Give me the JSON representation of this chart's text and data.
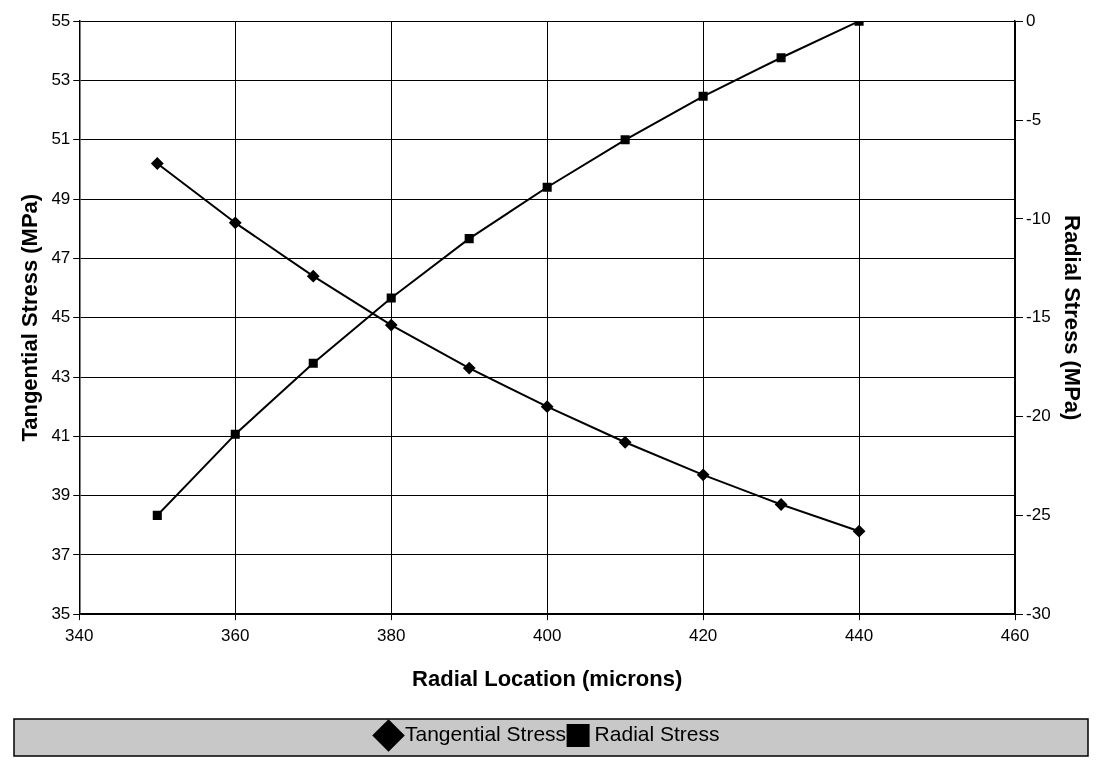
{
  "chart_data": {
    "type": "line",
    "xlabel": "Radial Location (microns)",
    "ylabel": "Tangential Stress (MPa)",
    "y2label": "Radial Stress (MPa)",
    "x": [
      350,
      360,
      370,
      380,
      390,
      400,
      410,
      420,
      430,
      440
    ],
    "xlim": [
      340,
      460
    ],
    "xticks": [
      340,
      360,
      380,
      400,
      420,
      440,
      460
    ],
    "ylim": [
      35,
      55
    ],
    "yticks": [
      35,
      37,
      39,
      41,
      43,
      45,
      47,
      49,
      51,
      53,
      55
    ],
    "y2lim": [
      -30,
      0
    ],
    "y2ticks": [
      -30,
      -25,
      -20,
      -15,
      -10,
      -5,
      0
    ],
    "grid": true,
    "legend": "bottom",
    "line_style": "solid",
    "series": [
      {
        "name": "Tangential Stress",
        "color": "#000000",
        "marker": "diamond",
        "values": [
          50.2,
          48.2,
          46.4,
          44.75,
          43.3,
          42.0,
          40.8,
          39.7,
          38.7,
          37.8
        ]
      },
      {
        "name": "Radial Stress",
        "color": "#000000",
        "marker": "square",
        "axis": "y2",
        "values": [
          -25.0,
          -20.9,
          -17.3,
          -14.0,
          -11.0,
          -8.4,
          -6.0,
          -3.8,
          -1.85,
          0
        ]
      }
    ]
  }
}
